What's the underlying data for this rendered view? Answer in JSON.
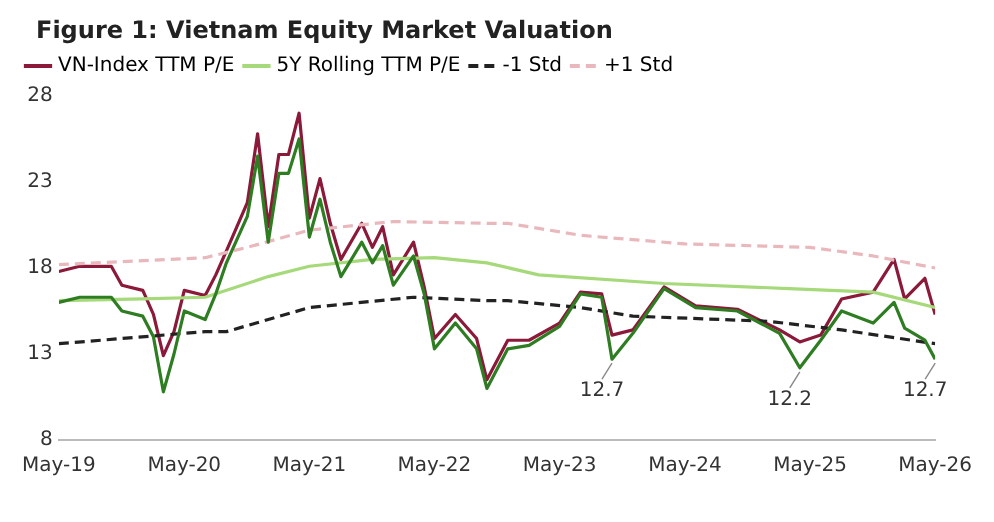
{
  "chart_data": {
    "type": "line",
    "title": "Figure 1: Vietnam Equity Market Valuation",
    "x": [
      "2019-05",
      "2019-07",
      "2019-10",
      "2019-11",
      "2020-01",
      "2020-02",
      "2020-03",
      "2020-04",
      "2020-05",
      "2020-07",
      "2020-08",
      "2020-09",
      "2020-11",
      "2020-12",
      "2021-01",
      "2021-02",
      "2021-03",
      "2021-04",
      "2021-05",
      "2021-06",
      "2021-07",
      "2021-08",
      "2021-10",
      "2021-11",
      "2021-12",
      "2022-01",
      "2022-03",
      "2022-04",
      "2022-05",
      "2022-07",
      "2022-09",
      "2022-10",
      "2022-12",
      "2023-02",
      "2023-05",
      "2023-07",
      "2023-09",
      "2023-10",
      "2023-12",
      "2024-03",
      "2024-06",
      "2024-10",
      "2025-02",
      "2025-04",
      "2025-06",
      "2025-08",
      "2025-11",
      "2026-01",
      "2026-02",
      "2026-04",
      "2026-05"
    ],
    "series": [
      {
        "name": "VN-Index TTM P/E",
        "color": "#8b1a3a",
        "values": [
          17.8,
          18.1,
          18.1,
          17.0,
          16.7,
          15.3,
          12.9,
          14.3,
          16.7,
          16.4,
          17.6,
          19.0,
          21.8,
          25.8,
          20.4,
          24.6,
          24.6,
          27.0,
          20.9,
          23.2,
          20.6,
          18.5,
          20.6,
          19.2,
          20.4,
          17.6,
          19.5,
          16.9,
          13.9,
          15.3,
          13.9,
          11.5,
          13.8,
          13.8,
          14.8,
          16.6,
          16.5,
          14.1,
          14.4,
          16.9,
          15.8,
          15.6,
          14.4,
          13.7,
          14.1,
          16.2,
          16.6,
          18.5,
          16.2,
          17.4,
          15.3
        ]
      },
      {
        "name": "5Y Rolling TTM P/E",
        "color": "#a6d97a",
        "x": [
          "2019-05",
          "2020-01",
          "2020-07",
          "2021-01",
          "2021-05",
          "2021-11",
          "2022-05",
          "2022-10",
          "2023-03",
          "2024-03",
          "2025-03",
          "2025-11",
          "2026-05"
        ],
        "values": [
          16.1,
          16.2,
          16.3,
          17.5,
          18.1,
          18.5,
          18.6,
          18.3,
          17.6,
          17.1,
          16.8,
          16.6,
          15.7
        ]
      },
      {
        "name": "-1 Std",
        "color": "#222222",
        "line_style": "dashed",
        "x": [
          "2019-05",
          "2020-07",
          "2020-09",
          "2021-05",
          "2022-03",
          "2022-10",
          "2022-12",
          "2023-07",
          "2023-12",
          "2025-01",
          "2025-08",
          "2026-05"
        ],
        "values": [
          13.6,
          14.3,
          14.3,
          15.7,
          16.3,
          16.1,
          16.1,
          15.7,
          15.2,
          14.9,
          14.4,
          13.6
        ]
      },
      {
        "name": "+1 Std",
        "color": "#e9b8bd",
        "line_style": "dashed",
        "x": [
          "2019-05",
          "2020-07",
          "2020-11",
          "2021-05",
          "2022-01",
          "2022-10",
          "2022-12",
          "2023-07",
          "2024-05",
          "2025-05",
          "2025-11",
          "2026-05"
        ],
        "values": [
          18.2,
          18.6,
          19.2,
          20.2,
          20.7,
          20.6,
          20.6,
          19.9,
          19.4,
          19.2,
          18.7,
          18.0
        ]
      },
      {
        "color": "#2e7d22",
        "values": [
          16.0,
          16.3,
          16.3,
          15.5,
          15.2,
          14.0,
          10.8,
          13.0,
          15.5,
          15.0,
          16.5,
          18.3,
          21.0,
          24.5,
          19.5,
          23.5,
          23.5,
          25.5,
          19.8,
          22.0,
          19.5,
          17.5,
          19.5,
          18.3,
          19.3,
          17.0,
          18.7,
          16.5,
          13.3,
          14.8,
          13.3,
          11.0,
          13.3,
          13.5,
          14.6,
          16.5,
          16.3,
          12.7,
          14.2,
          16.8,
          15.7,
          15.5,
          14.2,
          12.2,
          13.8,
          15.5,
          14.8,
          16.0,
          14.5,
          13.8,
          12.7
        ]
      }
    ],
    "xlim": [
      "2019-05",
      "2026-05"
    ],
    "xticks": [
      {
        "value": "2019-05",
        "label": "May-19"
      },
      {
        "value": "2020-05",
        "label": "May-20"
      },
      {
        "value": "2021-05",
        "label": "May-21"
      },
      {
        "value": "2022-05",
        "label": "May-22"
      },
      {
        "value": "2023-05",
        "label": "May-23"
      },
      {
        "value": "2024-05",
        "label": "May-24"
      },
      {
        "value": "2025-05",
        "label": "May-25"
      },
      {
        "value": "2026-05",
        "label": "May-26"
      }
    ],
    "ylim": [
      8,
      28
    ],
    "yticks": [
      8,
      13,
      18,
      23,
      28
    ],
    "annotations": [
      {
        "text": "12.7",
        "x": "2023-10",
        "y": 12.7
      },
      {
        "text": "12.2",
        "x": "2025-04",
        "y": 12.2
      },
      {
        "text": "12.7",
        "x": "2026-05",
        "y": 12.7
      }
    ],
    "legend": "top",
    "grid": false,
    "marker": "none",
    "line_style": "solid"
  }
}
